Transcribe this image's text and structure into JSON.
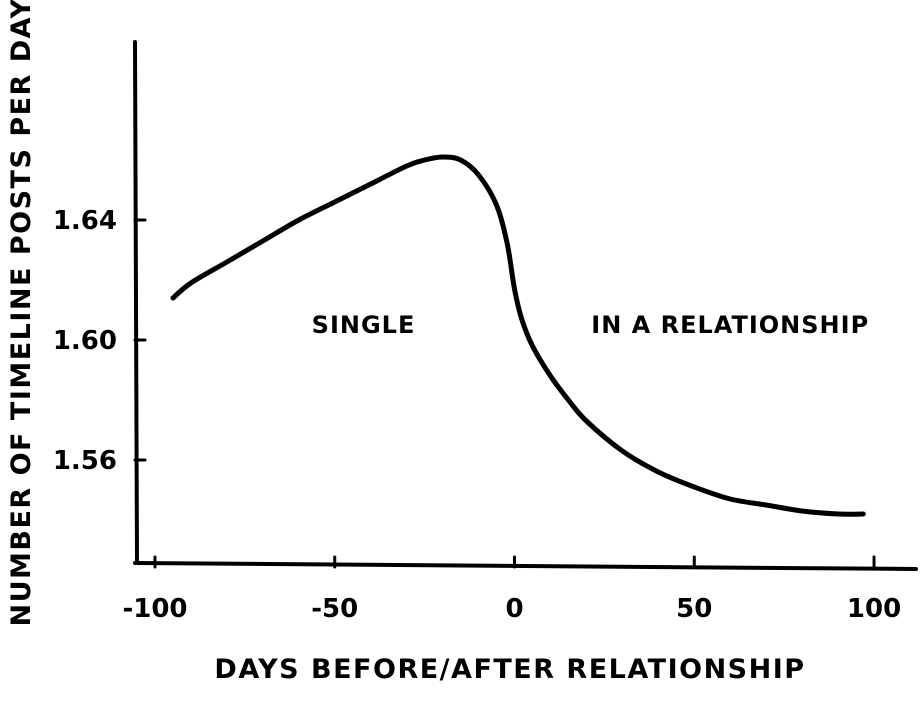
{
  "chart_data": {
    "type": "line",
    "title": "",
    "xlabel": "DAYS BEFORE/AFTER RELATIONSHIP",
    "ylabel": "NUMBER OF TIMELINE POSTS PER DAY",
    "xlim": [
      -105,
      110
    ],
    "ylim": [
      1.525,
      1.7
    ],
    "x_ticks": [
      -100,
      -50,
      0,
      50,
      100
    ],
    "x_tick_labels": [
      "-100",
      "-50",
      "0",
      "50",
      "100"
    ],
    "y_ticks": [
      1.56,
      1.6,
      1.64
    ],
    "y_tick_labels": [
      "1.56",
      "1.60",
      "1.64"
    ],
    "grid": false,
    "annotations": [
      {
        "text": "SINGLE",
        "x": -42,
        "y": 1.605
      },
      {
        "text": "IN A RELATIONSHIP",
        "x": 60,
        "y": 1.605
      }
    ],
    "series": [
      {
        "x": [
          -95,
          -90,
          -80,
          -70,
          -60,
          -50,
          -40,
          -30,
          -25,
          -20,
          -15,
          -10,
          -5,
          -2,
          0,
          2,
          5,
          10,
          15,
          20,
          30,
          40,
          50,
          60,
          70,
          80,
          90,
          97
        ],
        "y": [
          1.614,
          1.619,
          1.626,
          1.633,
          1.64,
          1.646,
          1.652,
          1.658,
          1.66,
          1.661,
          1.66,
          1.655,
          1.645,
          1.632,
          1.617,
          1.607,
          1.598,
          1.588,
          1.58,
          1.573,
          1.563,
          1.556,
          1.551,
          1.547,
          1.545,
          1.543,
          1.542,
          1.542
        ]
      }
    ]
  }
}
